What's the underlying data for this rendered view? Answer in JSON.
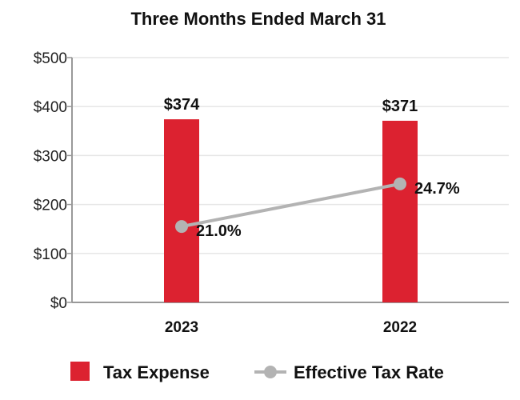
{
  "chart_data": {
    "type": "bar",
    "title": "Three Months Ended March 31",
    "categories": [
      "2023",
      "2022"
    ],
    "ylim": [
      0,
      500
    ],
    "yticks": [
      0,
      100,
      200,
      300,
      400,
      500
    ],
    "ytick_labels": [
      "$0",
      "$100",
      "$200",
      "$300",
      "$400",
      "$500"
    ],
    "grid": true,
    "legend_position": "bottom",
    "series": [
      {
        "name": "Tax Expense",
        "type": "bar",
        "color": "#dc2230",
        "values": [
          374,
          371
        ],
        "labels": [
          "$374",
          "$371"
        ]
      },
      {
        "name": "Effective Tax Rate",
        "type": "line",
        "color": "#b3b3b3",
        "values": [
          21.0,
          24.7
        ],
        "plot_values": [
          155,
          242
        ],
        "labels": [
          "21.0%",
          "24.7%"
        ]
      }
    ]
  }
}
